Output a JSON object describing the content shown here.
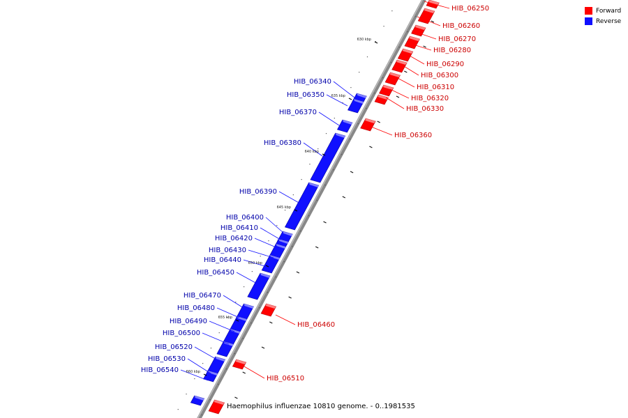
{
  "legend": {
    "forward": {
      "label": "Forward",
      "color": "#ff0000"
    },
    "reverse": {
      "label": "Reverse",
      "color": "#1010ff"
    }
  },
  "caption": "Haemophilus influenzae 10810 genome. - 0..1981535",
  "ticks": [
    "630 kbp",
    "635 kbp",
    "640 kbp",
    "645 kbp",
    "650 kbp",
    "655 kbp",
    "660 kbp"
  ],
  "forward_genes": [
    "HIB_06250",
    "HIB_06260",
    "HIB_06270",
    "HIB_06280",
    "HIB_06290",
    "HIB_06300",
    "HIB_06310",
    "HIB_06320",
    "HIB_06330",
    "HIB_06360",
    "HIB_06460",
    "HIB_06510"
  ],
  "reverse_genes": [
    "HIB_06340",
    "HIB_06350",
    "HIB_06370",
    "HIB_06380",
    "HIB_06390",
    "HIB_06400",
    "HIB_06410",
    "HIB_06420",
    "HIB_06430",
    "HIB_06440",
    "HIB_06450",
    "HIB_06470",
    "HIB_06480",
    "HIB_06490",
    "HIB_06500",
    "HIB_06520",
    "HIB_06530",
    "HIB_06540"
  ]
}
